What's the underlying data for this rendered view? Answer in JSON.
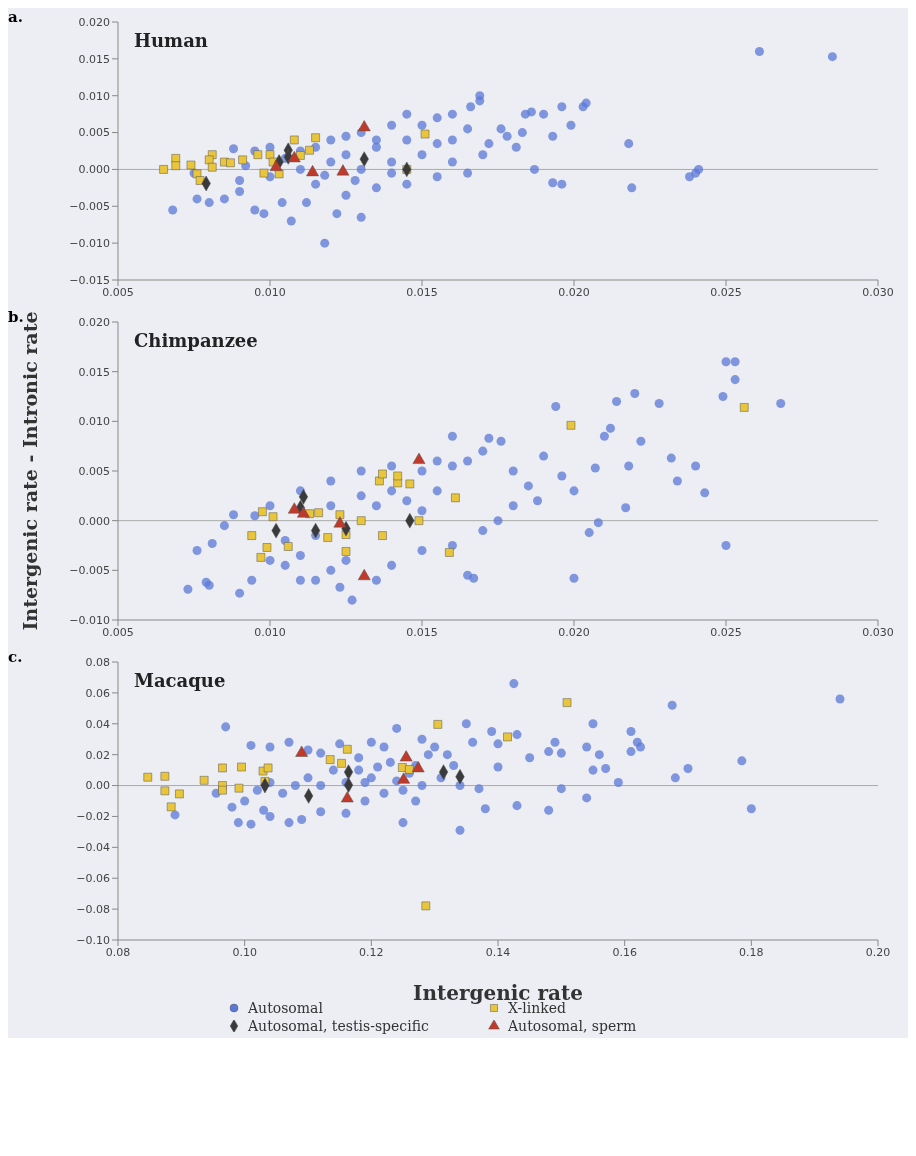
{
  "chart_data": [
    {
      "type": "scatter",
      "title": "Human",
      "annotations": [
        "a."
      ],
      "xlim": [
        0.005,
        0.03
      ],
      "xticks": [
        {
          "value": 0.005,
          "label": "0.005"
        },
        {
          "value": 0.01,
          "label": "0.010"
        },
        {
          "value": 0.015,
          "label": "0.015"
        },
        {
          "value": 0.02,
          "label": "0.020"
        },
        {
          "value": 0.025,
          "label": "0.025"
        },
        {
          "value": 0.03,
          "label": "0.030"
        }
      ],
      "ylim": [
        -0.015,
        0.02
      ],
      "yticks": [
        {
          "value": -0.015,
          "label": "−0.015"
        },
        {
          "value": -0.01,
          "label": "−0.010"
        },
        {
          "value": -0.005,
          "label": "−0.005"
        },
        {
          "value": 0,
          "label": "0.000"
        },
        {
          "value": 0.005,
          "label": "0.005"
        },
        {
          "value": 0.01,
          "label": "0.010"
        },
        {
          "value": 0.015,
          "label": "0.015"
        },
        {
          "value": 0.02,
          "label": "0.020"
        }
      ],
      "ref_lines": [
        {
          "axis": "y",
          "value": 0,
          "color": "#aaaaaa"
        }
      ],
      "series": [
        {
          "color": "#5b78d8",
          "marker": "circle",
          "x": [
            0.0261,
            0.0285,
            0.0218,
            0.0219,
            0.024,
            0.0241,
            0.0238,
            0.0204,
            0.0203,
            0.0196,
            0.019,
            0.0196,
            0.0193,
            0.0199,
            0.0193,
            0.0183,
            0.0186,
            0.0184,
            0.0169,
            0.0169,
            0.0176,
            0.0178,
            0.0187,
            0.0181,
            0.0166,
            0.016,
            0.016,
            0.0155,
            0.015,
            0.0145,
            0.014,
            0.0135,
            0.013,
            0.0125,
            0.012,
            0.0115,
            0.011,
            0.01,
            0.0095,
            0.0088,
            0.0075,
            0.0068,
            0.0076,
            0.008,
            0.0085,
            0.009,
            0.0095,
            0.0098,
            0.0104,
            0.0107,
            0.0118,
            0.0122,
            0.013,
            0.0112,
            0.0125,
            0.0135,
            0.0145,
            0.0155,
            0.0165,
            0.017,
            0.016,
            0.015,
            0.014,
            0.013,
            0.012,
            0.011,
            0.01,
            0.009,
            0.0105,
            0.0115,
            0.0125,
            0.0135,
            0.0145,
            0.0128,
            0.0118,
            0.0092,
            0.014,
            0.0155,
            0.0165,
            0.0172
          ],
          "values": [
            0.016,
            0.0153,
            0.0035,
            -0.0025,
            -0.0005,
            0,
            -0.001,
            0.009,
            0.0085,
            0.0085,
            0.0075,
            -0.002,
            -0.0018,
            0.006,
            0.0045,
            0.005,
            0.0078,
            0.0075,
            0.01,
            0.0093,
            0.0055,
            0.0045,
            0,
            0.003,
            0.0085,
            0.0075,
            0.004,
            0.007,
            0.006,
            0.0075,
            0.006,
            0.004,
            0.005,
            0.0045,
            0.004,
            0.003,
            0.0025,
            0.003,
            0.0025,
            0.0028,
            -0.0005,
            -0.0055,
            -0.004,
            -0.0045,
            -0.004,
            -0.003,
            -0.0055,
            -0.006,
            -0.0045,
            -0.007,
            -0.01,
            -0.006,
            -0.0065,
            -0.0045,
            -0.0035,
            -0.0025,
            -0.002,
            -0.001,
            -0.0005,
            0.002,
            0.001,
            0.002,
            0.001,
            0,
            0.001,
            0,
            -0.001,
            -0.0015,
            0.0015,
            -0.002,
            0.002,
            0.003,
            0.004,
            -0.0015,
            -0.0008,
            0.0005,
            -0.0005,
            0.0035,
            0.0055,
            0.0035
          ]
        },
        {
          "color": "#e8c53a",
          "marker": "square",
          "x": [
            0.0065,
            0.0069,
            0.0069,
            0.0074,
            0.0076,
            0.0077,
            0.0081,
            0.008,
            0.0081,
            0.0085,
            0.0087,
            0.0091,
            0.0096,
            0.0098,
            0.01,
            0.0101,
            0.0103,
            0.0108,
            0.011,
            0.0113,
            0.0115,
            0.0145,
            0.0151
          ],
          "values": [
            0,
            0.0015,
            0.0005,
            0.0006,
            -0.0006,
            -0.0015,
            0.002,
            0.0013,
            0.0003,
            0.001,
            0.0009,
            0.0013,
            0.002,
            -0.0005,
            0.002,
            0.001,
            -0.0006,
            0.004,
            0.0019,
            0.0026,
            0.0043,
            0,
            0.0048
          ]
        },
        {
          "color": "#3a3a3a",
          "marker": "diamond",
          "x": [
            0.0079,
            0.0106,
            0.0106,
            0.0103,
            0.0131,
            0.0145
          ],
          "values": [
            -0.0019,
            0.0026,
            0.0017,
            0.001,
            0.0014,
            0
          ]
        },
        {
          "color": "#c0392b",
          "marker": "triangle",
          "x": [
            0.0131,
            0.0102,
            0.0108,
            0.0114,
            0.0124
          ],
          "values": [
            0.0057,
            0.0003,
            0.0015,
            -0.0004,
            -0.0003
          ]
        }
      ]
    },
    {
      "type": "scatter",
      "title": "Chimpanzee",
      "annotations": [
        "b."
      ],
      "ylabel": "Intergenic rate - Intronic rate",
      "xlim": [
        0.005,
        0.03
      ],
      "xticks": [
        {
          "value": 0.005,
          "label": "0.005"
        },
        {
          "value": 0.01,
          "label": "0.010"
        },
        {
          "value": 0.015,
          "label": "0.015"
        },
        {
          "value": 0.02,
          "label": "0.020"
        },
        {
          "value": 0.025,
          "label": "0.025"
        },
        {
          "value": 0.03,
          "label": "0.030"
        }
      ],
      "ylim": [
        -0.01,
        0.02
      ],
      "yticks": [
        {
          "value": -0.01,
          "label": "−0.010"
        },
        {
          "value": -0.005,
          "label": "−0.005"
        },
        {
          "value": 0,
          "label": "0.000"
        },
        {
          "value": 0.005,
          "label": "0.005"
        },
        {
          "value": 0.01,
          "label": "0.010"
        },
        {
          "value": 0.015,
          "label": "0.015"
        },
        {
          "value": 0.02,
          "label": "0.020"
        }
      ],
      "ref_lines": [
        {
          "axis": "y",
          "value": 0,
          "color": "#aaaaaa"
        }
      ],
      "series": [
        {
          "color": "#5b78d8",
          "marker": "circle",
          "x": [
            0.0073,
            0.008,
            0.0079,
            0.0076,
            0.0081,
            0.0085,
            0.0088,
            0.009,
            0.0094,
            0.01,
            0.0105,
            0.011,
            0.0115,
            0.012,
            0.0123,
            0.0127,
            0.0135,
            0.014,
            0.015,
            0.016,
            0.0167,
            0.0165,
            0.015,
            0.014,
            0.013,
            0.012,
            0.011,
            0.01,
            0.0095,
            0.0105,
            0.0115,
            0.012,
            0.013,
            0.0135,
            0.014,
            0.0145,
            0.015,
            0.0155,
            0.016,
            0.0165,
            0.017,
            0.0172,
            0.0176,
            0.018,
            0.0185,
            0.0188,
            0.019,
            0.0194,
            0.018,
            0.0175,
            0.017,
            0.0196,
            0.02,
            0.02,
            0.0205,
            0.0208,
            0.0207,
            0.021,
            0.0212,
            0.0214,
            0.022,
            0.0217,
            0.0218,
            0.0222,
            0.0228,
            0.0232,
            0.0234,
            0.0243,
            0.024,
            0.0249,
            0.025,
            0.0253,
            0.0253,
            0.025,
            0.0268,
            0.016,
            0.0155,
            0.0125,
            0.011
          ],
          "values": [
            -0.0069,
            -0.0065,
            -0.0062,
            -0.003,
            -0.0023,
            -0.0005,
            0.0006,
            -0.0073,
            -0.006,
            -0.004,
            -0.0045,
            -0.0035,
            -0.006,
            -0.005,
            -0.0067,
            -0.008,
            -0.006,
            -0.0045,
            -0.003,
            -0.0025,
            -0.0058,
            -0.0055,
            0.005,
            0.0055,
            0.005,
            0.004,
            0.003,
            0.0015,
            0.0005,
            -0.002,
            -0.0015,
            0.0015,
            0.0025,
            0.0015,
            0.003,
            0.002,
            0.001,
            0.003,
            0.0055,
            0.006,
            0.007,
            0.0083,
            0.008,
            0.005,
            0.0035,
            0.002,
            0.0065,
            0.0115,
            0.0015,
            0,
            -0.001,
            0.0045,
            0.003,
            -0.0058,
            -0.0012,
            -0.0002,
            0.0053,
            0.0085,
            0.0093,
            0.012,
            0.0128,
            0.0013,
            0.0055,
            0.008,
            0.0118,
            0.0063,
            0.004,
            0.0028,
            0.0055,
            0.0125,
            0.016,
            0.016,
            0.0142,
            -0.0025,
            0.0118,
            0.0085,
            0.006,
            -0.004,
            -0.006
          ]
        },
        {
          "color": "#e8c53a",
          "marker": "square",
          "x": [
            0.00975,
            0.0101,
            0.0094,
            0.0099,
            0.0097,
            0.0106,
            0.0113,
            0.0116,
            0.0119,
            0.0123,
            0.0125,
            0.0125,
            0.013,
            0.0136,
            0.0137,
            0.0137,
            0.0142,
            0.0142,
            0.0146,
            0.0149,
            0.0161,
            0.0159,
            0.0199,
            0.0256
          ],
          "values": [
            0.0009,
            0.0004,
            -0.0015,
            -0.0027,
            -0.0037,
            -0.0026,
            0.0007,
            0.0008,
            -0.0017,
            0.0006,
            -0.0014,
            -0.0031,
            0,
            0.004,
            0.0047,
            -0.0015,
            0.0038,
            0.0045,
            0.0037,
            0,
            0.0023,
            -0.0032,
            0.0096,
            0.0114
          ]
        },
        {
          "color": "#3a3a3a",
          "marker": "diamond",
          "x": [
            0.0111,
            0.011,
            0.0102,
            0.0115,
            0.0146,
            0.0125
          ],
          "values": [
            0.0024,
            0.0013,
            -0.001,
            -0.001,
            0,
            -0.0008
          ]
        },
        {
          "color": "#c0392b",
          "marker": "triangle",
          "x": [
            0.0149,
            0.0108,
            0.0111,
            0.0123,
            0.0131
          ],
          "values": [
            0.0061,
            0.0011,
            0.0007,
            -0.0003,
            -0.0056
          ]
        }
      ]
    },
    {
      "type": "scatter",
      "title": "Macaque",
      "annotations": [
        "c."
      ],
      "xlabel": "Intergenic rate",
      "legend": "bottom",
      "xlim": [
        0.08,
        0.2
      ],
      "xticks": [
        {
          "value": 0.08,
          "label": "0.08"
        },
        {
          "value": 0.1,
          "label": "0.10"
        },
        {
          "value": 0.12,
          "label": "0.12"
        },
        {
          "value": 0.14,
          "label": "0.14"
        },
        {
          "value": 0.16,
          "label": "0.16"
        },
        {
          "value": 0.18,
          "label": "0.18"
        },
        {
          "value": 0.2,
          "label": "0.20"
        }
      ],
      "ylim": [
        -0.1,
        0.08
      ],
      "yticks": [
        {
          "value": -0.1,
          "label": "−0.10"
        },
        {
          "value": -0.08,
          "label": "−0.08"
        },
        {
          "value": -0.06,
          "label": "−0.06"
        },
        {
          "value": -0.04,
          "label": "−0.04"
        },
        {
          "value": -0.02,
          "label": "−0.02"
        },
        {
          "value": 0,
          "label": "0.00"
        },
        {
          "value": 0.02,
          "label": "0.02"
        },
        {
          "value": 0.04,
          "label": "0.04"
        },
        {
          "value": 0.06,
          "label": "0.06"
        },
        {
          "value": 0.08,
          "label": "0.08"
        }
      ],
      "ref_lines": [
        {
          "axis": "y",
          "value": 0,
          "color": "#aaaaaa"
        }
      ],
      "series": [
        {
          "name": "Autosomal",
          "color": "#5b78d8",
          "marker": "circle",
          "x": [
            0.194,
            0.1425,
            0.1675,
            0.1785,
            0.18,
            0.168,
            0.17,
            0.159,
            0.161,
            0.162,
            0.1625,
            0.161,
            0.155,
            0.154,
            0.156,
            0.155,
            0.157,
            0.154,
            0.15,
            0.149,
            0.148,
            0.15,
            0.148,
            0.145,
            0.143,
            0.143,
            0.14,
            0.139,
            0.14,
            0.138,
            0.135,
            0.134,
            0.132,
            0.13,
            0.128,
            0.127,
            0.125,
            0.124,
            0.122,
            0.12,
            0.118,
            0.115,
            0.112,
            0.11,
            0.107,
            0.104,
            0.101,
            0.097,
            0.099,
            0.101,
            0.104,
            0.107,
            0.109,
            0.112,
            0.116,
            0.119,
            0.122,
            0.125,
            0.128,
            0.131,
            0.134,
            0.137,
            0.136,
            0.133,
            0.129,
            0.126,
            0.123,
            0.12,
            0.118,
            0.116,
            0.114,
            0.112,
            0.11,
            0.108,
            0.106,
            0.104,
            0.102,
            0.1,
            0.098,
            0.0955,
            0.089,
            0.103,
            0.121,
            0.119,
            0.124,
            0.127
          ],
          "values": [
            0.056,
            0.066,
            0.052,
            0.016,
            -0.015,
            0.005,
            0.011,
            0.002,
            0.035,
            0.028,
            0.025,
            0.022,
            0.04,
            0.025,
            0.02,
            0.01,
            0.011,
            -0.008,
            0.021,
            0.028,
            0.022,
            -0.002,
            -0.016,
            0.018,
            0.033,
            -0.013,
            0.012,
            0.035,
            0.027,
            -0.015,
            0.04,
            -0.029,
            0.02,
            0.025,
            0.03,
            -0.01,
            -0.024,
            0.037,
            0.025,
            0.028,
            0.018,
            0.027,
            0.021,
            0.023,
            0.028,
            0.025,
            0.026,
            0.038,
            -0.024,
            -0.025,
            -0.02,
            -0.024,
            -0.022,
            -0.017,
            -0.018,
            -0.01,
            -0.005,
            -0.003,
            0,
            0.005,
            0,
            -0.002,
            0.028,
            0.013,
            0.02,
            0.008,
            0.015,
            0.005,
            0.01,
            0.002,
            0.01,
            0,
            0.005,
            0,
            -0.005,
            0.002,
            -0.003,
            -0.01,
            -0.014,
            -0.005,
            -0.019,
            -0.016,
            0.012,
            0.002,
            0.003,
            0.013
          ]
        },
        {
          "name": "X-linked",
          "color": "#e8c53a",
          "marker": "square",
          "x": [
            0.0847,
            0.0874,
            0.0874,
            0.0884,
            0.0897,
            0.0936,
            0.0965,
            0.0965,
            0.0965,
            0.0995,
            0.0991,
            0.1029,
            0.1037,
            0.1032,
            0.1135,
            0.1153,
            0.1162,
            0.1249,
            0.126,
            0.1286,
            0.1305,
            0.1415,
            0.1509
          ],
          "values": [
            0.0054,
            0.006,
            -0.0034,
            -0.0138,
            -0.0054,
            0.0034,
            0.0114,
            0,
            -0.003,
            0.012,
            -0.0017,
            0.0094,
            0.0114,
            0.0027,
            0.0168,
            0.0144,
            0.0235,
            0.0117,
            0.0104,
            -0.0779,
            0.0396,
            0.0315,
            0.0537
          ]
        },
        {
          "name": "Autosomal, testis-specific",
          "color": "#3a3a3a",
          "marker": "diamond",
          "x": [
            0.1032,
            0.1101,
            0.1164,
            0.1164,
            0.1314,
            0.134
          ],
          "values": [
            0,
            -0.0067,
            0.0087,
            0.0003,
            0.0087,
            0.0057
          ]
        },
        {
          "name": "Autosomal, sperm",
          "color": "#c0392b",
          "marker": "triangle",
          "x": [
            0.109,
            0.1162,
            0.1255,
            0.1251,
            0.1274
          ],
          "values": [
            0.0211,
            -0.0084,
            0.0181,
            0.0037,
            0.0111
          ]
        }
      ]
    }
  ]
}
